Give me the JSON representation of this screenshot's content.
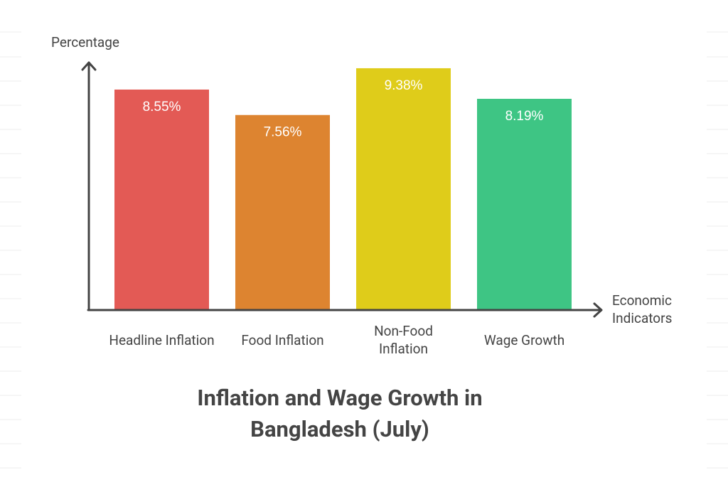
{
  "chart_data": {
    "type": "bar",
    "title": "Inflation and Wage Growth in Bangladesh (July)",
    "y_axis_label": "Percentage",
    "x_axis_label": "Economic Indicators",
    "categories": [
      "Headline Inflation",
      "Food Inflation",
      "Non-Food Inflation",
      "Wage Growth"
    ],
    "values": [
      8.55,
      7.56,
      9.38,
      8.19
    ],
    "value_labels": [
      "8.55%",
      "7.56%",
      "9.38%",
      "8.19%"
    ],
    "colors": [
      "#e35a55",
      "#dd8430",
      "#dfcc1a",
      "#3ec584"
    ],
    "ylim": [
      0,
      9.6
    ]
  }
}
